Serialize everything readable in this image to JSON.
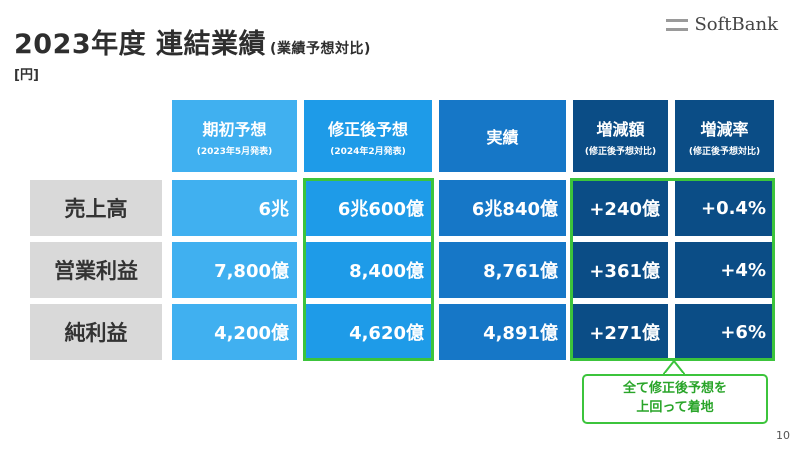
{
  "header": {
    "title": "2023年度 連結業績",
    "subtitle": "(業績予想対比)",
    "unit": "[円]",
    "logo_text": "SoftBank"
  },
  "table": {
    "columns": [
      {
        "label": "期初予想",
        "sub": "(2023年5月発表)"
      },
      {
        "label": "修正後予想",
        "sub": "(2024年2月発表)"
      },
      {
        "label": "実績",
        "sub": ""
      },
      {
        "label": "増減額",
        "sub": "(修正後予想対比)"
      },
      {
        "label": "増減率",
        "sub": "(修正後予想対比)"
      }
    ],
    "rows": [
      {
        "label": "売上高",
        "values": [
          "6兆",
          "6兆600億",
          "6兆840億",
          "+240億",
          "+0.4%"
        ]
      },
      {
        "label": "営業利益",
        "values": [
          "7,800億",
          "8,400億",
          "8,761億",
          "+361億",
          "+4%"
        ]
      },
      {
        "label": "純利益",
        "values": [
          "4,200億",
          "4,620億",
          "4,891億",
          "+271億",
          "+6%"
        ]
      }
    ]
  },
  "callout": {
    "line1": "全て修正後予想を",
    "line2": "上回って着地"
  },
  "colors": {
    "initial_forecast": "#40b0f0",
    "revised_forecast": "#1e9be8",
    "actual": "#1677c7",
    "change": "#0b4d86",
    "highlight": "#3cc43c"
  },
  "page_number": "10"
}
